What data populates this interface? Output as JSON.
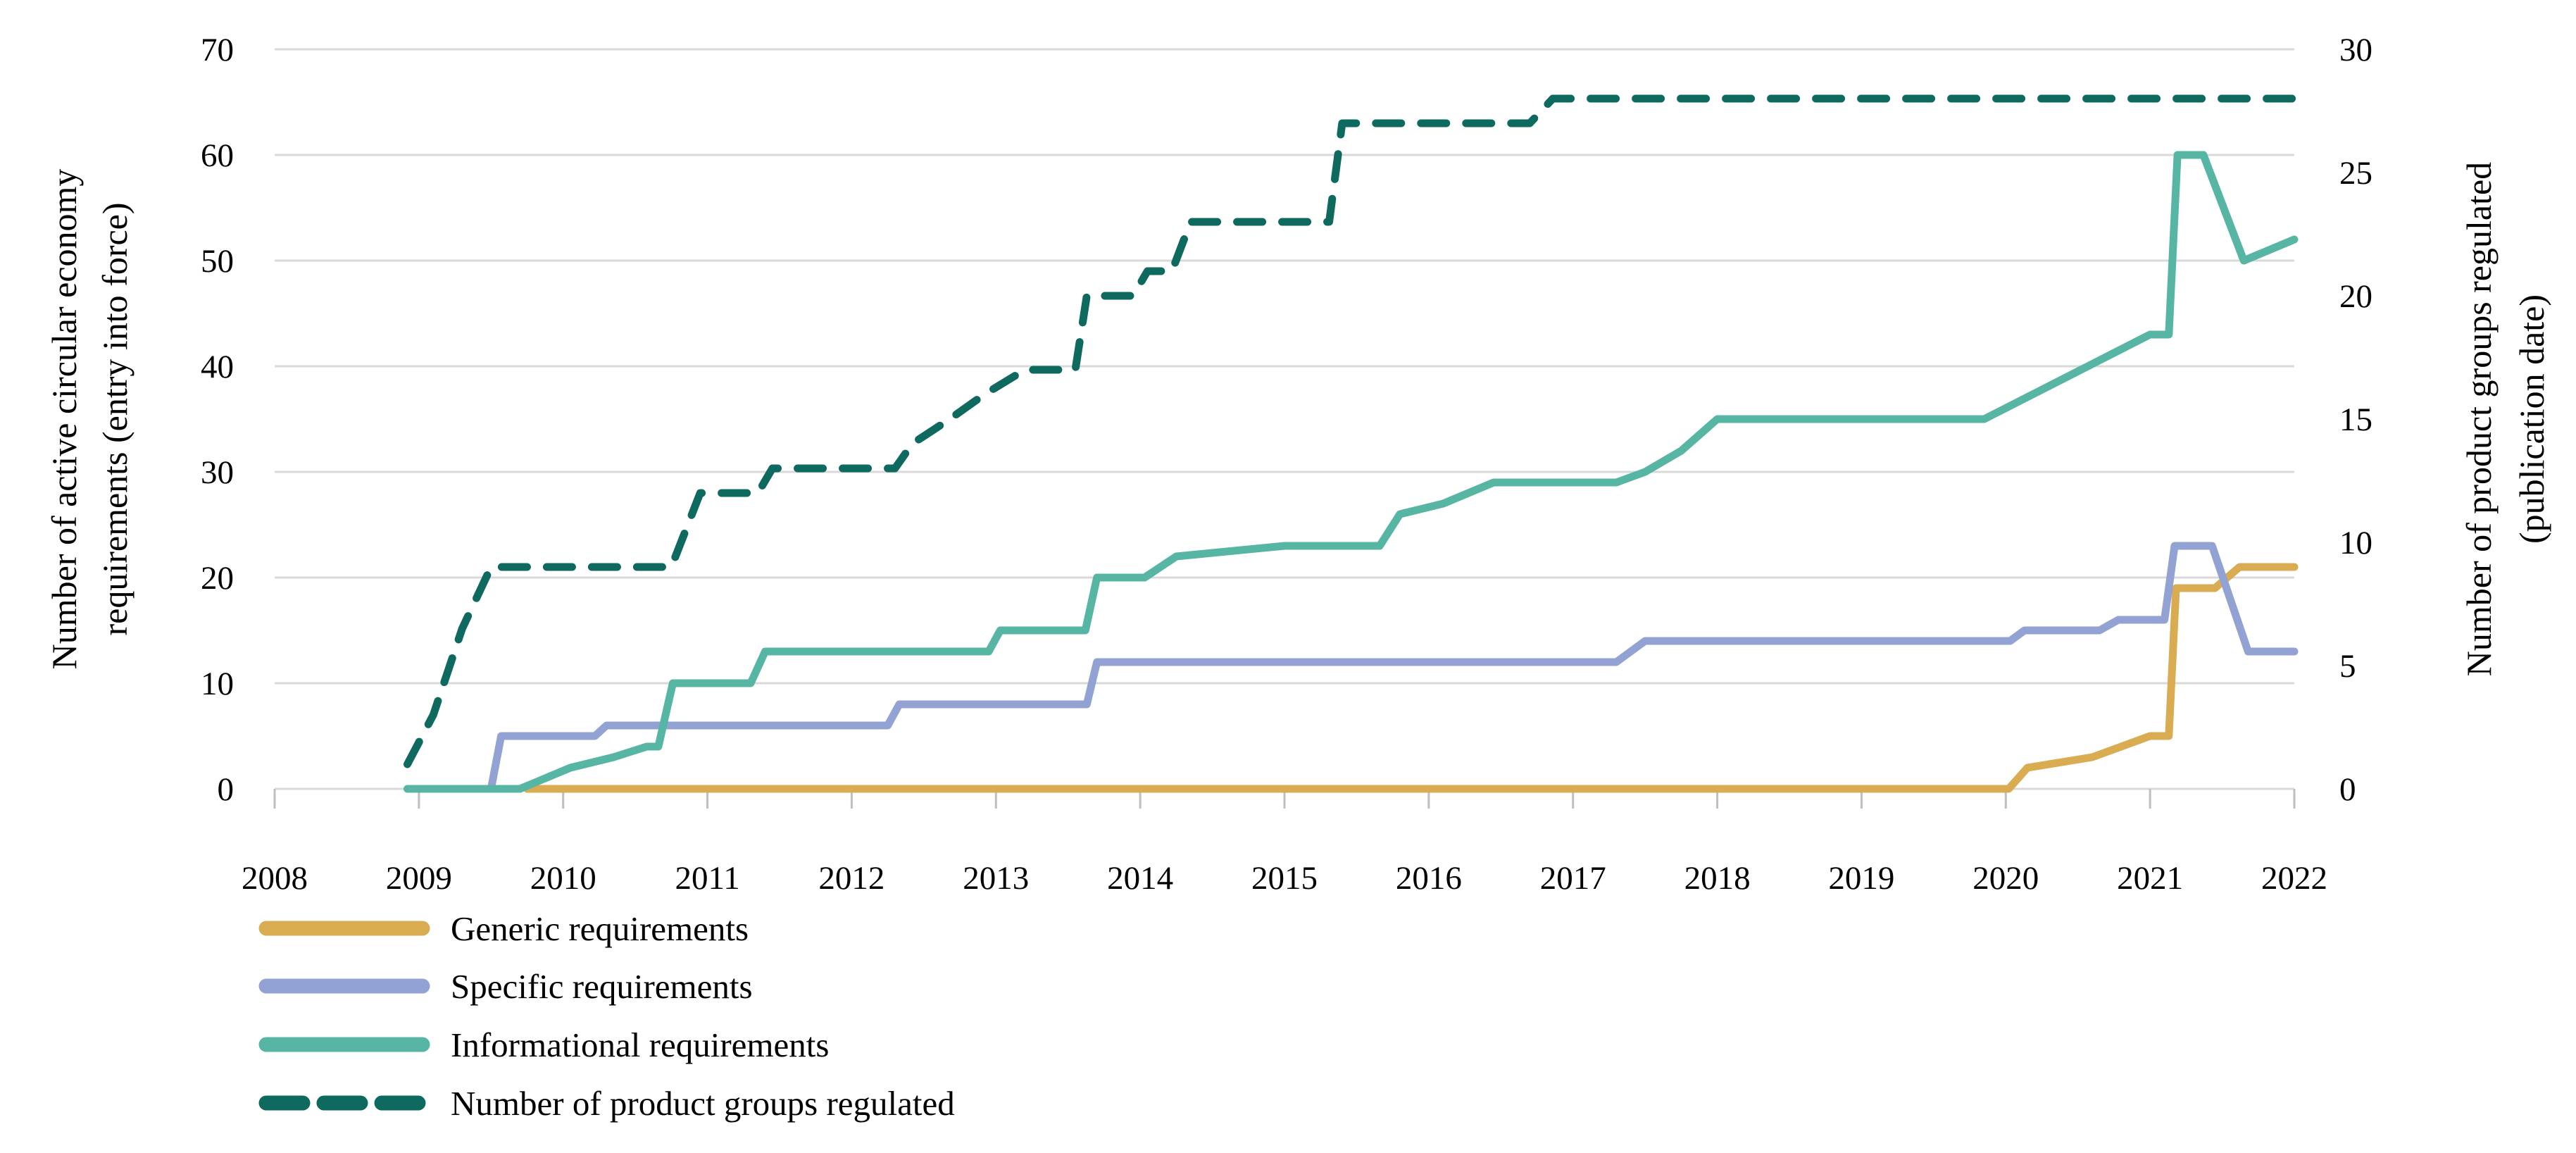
{
  "figure": {
    "background": "#ffffff",
    "grid_color": "#d9d9d9",
    "tick_color": "#bfbfbf",
    "text_color": "#000000",
    "left_axis": {
      "title_line1": "Number of active circular economy",
      "title_line2": "requirements (entry into force)",
      "ticks": [
        0,
        10,
        20,
        30,
        40,
        50,
        60,
        70
      ],
      "range": [
        0,
        70
      ]
    },
    "right_axis": {
      "title_line1": "Number of product groups regulated",
      "title_line2": "(publication date)",
      "ticks": [
        0,
        5,
        10,
        15,
        20,
        25,
        30
      ],
      "range": [
        0,
        30
      ]
    },
    "x_axis": {
      "ticks": [
        2008,
        2009,
        2010,
        2011,
        2012,
        2013,
        2014,
        2015,
        2016,
        2017,
        2018,
        2019,
        2020,
        2021,
        2022
      ],
      "range": [
        2008,
        2022
      ]
    }
  },
  "chart_data": {
    "type": "line",
    "title": "",
    "grid": "horizontal",
    "legend_position": "bottom-left",
    "x_range": [
      2008,
      2022
    ],
    "left_ylim": [
      0,
      70
    ],
    "right_ylim": [
      0,
      30
    ],
    "series": [
      {
        "name": "Generic requirements",
        "color": "#daac52",
        "axis": "left",
        "dashed": false,
        "points": [
          [
            2009.75,
            0
          ],
          [
            2020.02,
            0
          ],
          [
            2020.15,
            2
          ],
          [
            2020.6,
            3
          ],
          [
            2021.0,
            5
          ],
          [
            2021.13,
            5
          ],
          [
            2021.18,
            19
          ],
          [
            2021.45,
            19
          ],
          [
            2021.62,
            21
          ],
          [
            2022,
            21
          ]
        ]
      },
      {
        "name": "Specific requirements",
        "color": "#92a2d2",
        "axis": "left",
        "dashed": false,
        "points": [
          [
            2009.5,
            0
          ],
          [
            2009.57,
            5
          ],
          [
            2010.22,
            5
          ],
          [
            2010.3,
            6
          ],
          [
            2012.25,
            6
          ],
          [
            2012.33,
            8
          ],
          [
            2013.63,
            8
          ],
          [
            2013.7,
            12
          ],
          [
            2017.3,
            12
          ],
          [
            2017.5,
            14
          ],
          [
            2020.03,
            14
          ],
          [
            2020.13,
            15
          ],
          [
            2020.65,
            15
          ],
          [
            2020.78,
            16
          ],
          [
            2021.1,
            16
          ],
          [
            2021.17,
            23
          ],
          [
            2021.43,
            23
          ],
          [
            2021.68,
            13
          ],
          [
            2022,
            13
          ]
        ]
      },
      {
        "name": "Informational requirements",
        "color": "#57b5a3",
        "axis": "left",
        "dashed": false,
        "points": [
          [
            2008.92,
            0
          ],
          [
            2009.7,
            0
          ],
          [
            2010.05,
            2
          ],
          [
            2010.35,
            3
          ],
          [
            2010.58,
            4
          ],
          [
            2010.66,
            4
          ],
          [
            2010.76,
            10
          ],
          [
            2011.3,
            10
          ],
          [
            2011.4,
            13
          ],
          [
            2012.95,
            13
          ],
          [
            2013.03,
            15
          ],
          [
            2013.62,
            15
          ],
          [
            2013.7,
            20
          ],
          [
            2014.03,
            20
          ],
          [
            2014.25,
            22
          ],
          [
            2015.0,
            23
          ],
          [
            2015.66,
            23
          ],
          [
            2015.8,
            26
          ],
          [
            2016.1,
            27
          ],
          [
            2016.45,
            29
          ],
          [
            2017.3,
            29
          ],
          [
            2017.5,
            30
          ],
          [
            2017.75,
            32
          ],
          [
            2018.0,
            35
          ],
          [
            2019.85,
            35
          ],
          [
            2021.0,
            43
          ],
          [
            2021.13,
            43
          ],
          [
            2021.19,
            60
          ],
          [
            2021.37,
            60
          ],
          [
            2021.65,
            50
          ],
          [
            2022,
            52
          ]
        ]
      },
      {
        "name": "Number of product groups regulated",
        "color": "#0e6a5f",
        "axis": "right",
        "dashed": true,
        "points": [
          [
            2008.92,
            1
          ],
          [
            2009.1,
            3
          ],
          [
            2009.3,
            6.5
          ],
          [
            2009.5,
            9
          ],
          [
            2010.75,
            9
          ],
          [
            2010.95,
            12
          ],
          [
            2011.35,
            12
          ],
          [
            2011.45,
            13
          ],
          [
            2012.3,
            13
          ],
          [
            2012.42,
            14
          ],
          [
            2012.68,
            15
          ],
          [
            2012.92,
            16
          ],
          [
            2013.2,
            17
          ],
          [
            2013.55,
            17
          ],
          [
            2013.63,
            20
          ],
          [
            2013.95,
            20
          ],
          [
            2014.05,
            21
          ],
          [
            2014.22,
            21
          ],
          [
            2014.35,
            23
          ],
          [
            2015.31,
            23
          ],
          [
            2015.4,
            27
          ],
          [
            2016.7,
            27
          ],
          [
            2016.86,
            28
          ],
          [
            2022,
            28
          ]
        ]
      }
    ]
  }
}
